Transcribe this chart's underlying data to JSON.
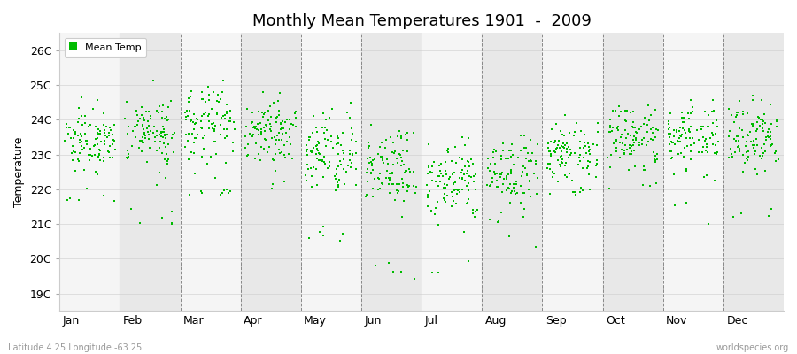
{
  "title": "Monthly Mean Temperatures 1901  -  2009",
  "ylabel": "Temperature",
  "xlabel_labels": [
    "Jan",
    "Feb",
    "Mar",
    "Apr",
    "May",
    "Jun",
    "Jul",
    "Aug",
    "Sep",
    "Oct",
    "Nov",
    "Dec"
  ],
  "ytick_labels": [
    "19C",
    "20C",
    "21C",
    "22C",
    "23C",
    "24C",
    "25C",
    "26C"
  ],
  "ytick_values": [
    19,
    20,
    21,
    22,
    23,
    24,
    25,
    26
  ],
  "ylim": [
    18.5,
    26.5
  ],
  "legend_label": "Mean Temp",
  "dot_color": "#00bb00",
  "dot_size": 2.5,
  "subtitle": "Latitude 4.25 Longitude -63.25",
  "watermark": "worldspecies.org",
  "n_years": 109,
  "month_mean_temps": [
    23.35,
    23.65,
    23.9,
    23.75,
    23.0,
    22.5,
    22.2,
    22.4,
    23.1,
    23.45,
    23.5,
    23.45
  ],
  "month_std_temps": [
    0.45,
    0.55,
    0.55,
    0.5,
    0.55,
    0.6,
    0.55,
    0.5,
    0.45,
    0.45,
    0.5,
    0.5
  ],
  "month_min_temps": [
    21.8,
    21.5,
    22.0,
    22.2,
    21.0,
    20.0,
    20.0,
    21.0,
    22.0,
    22.2,
    22.3,
    21.5
  ],
  "month_max_temps": [
    25.1,
    25.8,
    25.9,
    24.8,
    24.5,
    24.5,
    23.5,
    23.8,
    24.5,
    24.9,
    25.0,
    24.8
  ],
  "month_outlier_mins": [
    21.5,
    21.0,
    21.8,
    22.0,
    20.5,
    19.3,
    19.5,
    20.2,
    21.8,
    22.0,
    21.0,
    21.0
  ],
  "band_light": "#f5f5f5",
  "band_dark": "#e8e8e8",
  "fig_bg": "#ffffff",
  "ax_bg": "#ffffff"
}
